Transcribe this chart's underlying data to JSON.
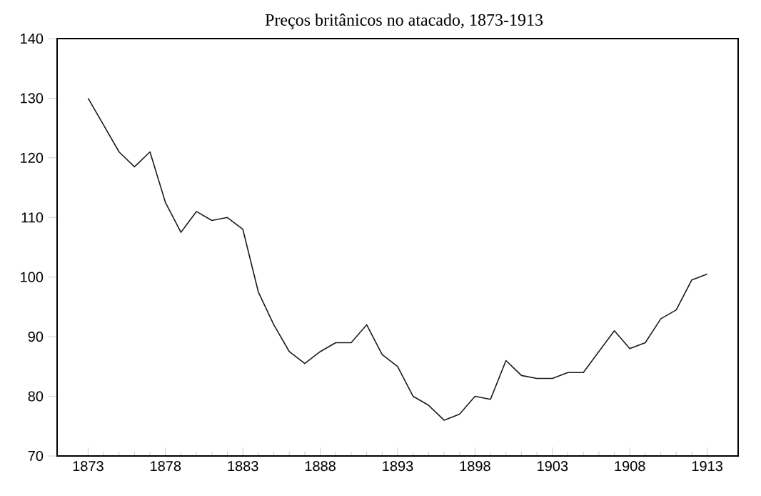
{
  "chart_data": {
    "type": "line",
    "title": "Preços britânicos no atacado, 1873-1913",
    "x": [
      1873,
      1874,
      1875,
      1876,
      1877,
      1878,
      1879,
      1880,
      1881,
      1882,
      1883,
      1884,
      1885,
      1886,
      1887,
      1888,
      1889,
      1890,
      1891,
      1892,
      1893,
      1894,
      1895,
      1896,
      1897,
      1898,
      1899,
      1900,
      1901,
      1902,
      1903,
      1904,
      1905,
      1906,
      1907,
      1908,
      1909,
      1910,
      1911,
      1912,
      1913
    ],
    "values": [
      130,
      125.5,
      121,
      118.5,
      121,
      112.5,
      107.5,
      111,
      109.5,
      110,
      108,
      97.5,
      92,
      87.5,
      85.5,
      87.5,
      89,
      89,
      92,
      87,
      85,
      80,
      78.5,
      76,
      77,
      80,
      79.5,
      86,
      83.5,
      83,
      83,
      84,
      84,
      87.5,
      91,
      88,
      89,
      93,
      94.5,
      99.5,
      100.5
    ],
    "color": "#1a1a1a",
    "xlim": [
      1871,
      1915
    ],
    "xticks": [
      1873,
      1878,
      1883,
      1888,
      1893,
      1898,
      1903,
      1908,
      1913
    ],
    "ylim": [
      70,
      140
    ],
    "yticks": [
      70,
      80,
      90,
      100,
      110,
      120,
      130,
      140
    ],
    "grid": false,
    "marker": "none",
    "line_style": "solid"
  }
}
